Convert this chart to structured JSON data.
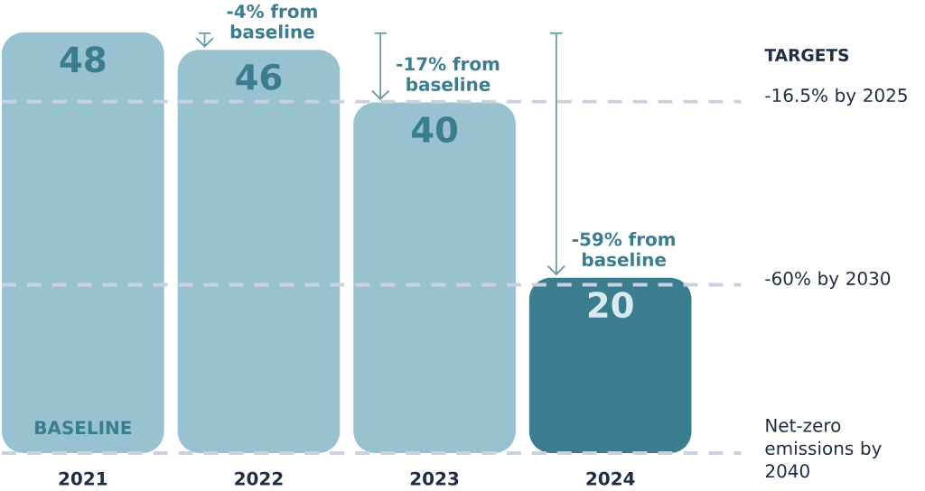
{
  "chart_data": {
    "type": "bar",
    "categories": [
      "2021",
      "2022",
      "2023",
      "2024"
    ],
    "values": [
      48,
      46,
      40,
      20
    ],
    "colors": [
      "#98c2cf",
      "#98c2cf",
      "#98c2cf",
      "#3a7d8e"
    ],
    "data_labels": true,
    "ref_lines": [
      {
        "axis": "y",
        "value": 40.1,
        "label": "-16.5% by 2025",
        "color": "#c9d1e0",
        "line_style": "dashed"
      },
      {
        "axis": "y",
        "value": 19.2,
        "label": "-60% by 2030",
        "color": "#c9d1e0",
        "line_style": "dashed"
      },
      {
        "axis": "y",
        "value": 0,
        "label": "Net-zero emissions by 2040",
        "color": "#c9d1e0",
        "line_style": "dashed"
      }
    ],
    "annotations": [
      "TARGETS",
      "BASELINE",
      {
        "text": "-4% from baseline",
        "x": "2022",
        "y": 46
      },
      {
        "text": "-17% from baseline",
        "x": "2023",
        "y": 40
      },
      {
        "text": "-59% from baseline",
        "x": "2024",
        "y": 20
      }
    ]
  }
}
